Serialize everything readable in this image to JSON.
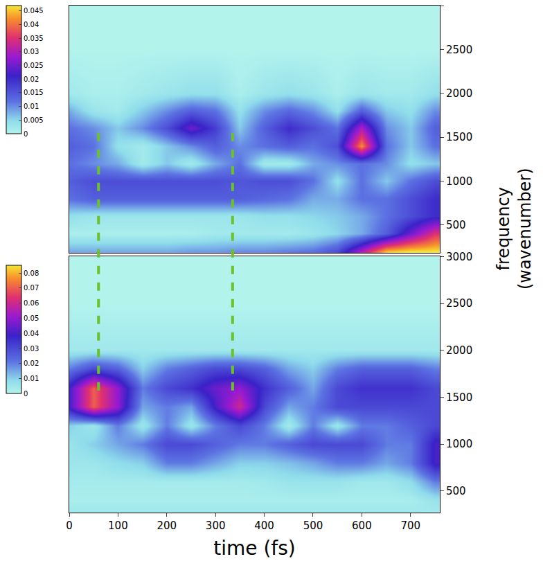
{
  "chart_data": [
    {
      "type": "heatmap",
      "x": [
        0,
        50,
        100,
        150,
        200,
        250,
        300,
        350,
        400,
        450,
        500,
        550,
        600,
        650,
        700,
        750
      ],
      "y": [
        200,
        400,
        600,
        800,
        1000,
        1200,
        1400,
        1600,
        1800,
        2000,
        2500,
        3000
      ],
      "cells": [
        [
          0.008,
          0.008,
          0.008,
          0.008,
          0.008,
          0.009,
          0.009,
          0.01,
          0.01,
          0.011,
          0.012,
          0.016,
          0.03,
          0.045,
          0.047,
          0.047
        ],
        [
          0.001,
          0.001,
          0.001,
          0.001,
          0.001,
          0.001,
          0.002,
          0.002,
          0.002,
          0.002,
          0.003,
          0.005,
          0.008,
          0.014,
          0.025,
          0.035
        ],
        [
          0.004,
          0.003,
          0.003,
          0.003,
          0.003,
          0.003,
          0.003,
          0.003,
          0.004,
          0.004,
          0.005,
          0.006,
          0.008,
          0.012,
          0.016,
          0.02
        ],
        [
          0.012,
          0.014,
          0.014,
          0.014,
          0.014,
          0.014,
          0.014,
          0.014,
          0.013,
          0.012,
          0.008,
          0.008,
          0.012,
          0.012,
          0.016,
          0.02
        ],
        [
          0.014,
          0.016,
          0.016,
          0.016,
          0.016,
          0.016,
          0.016,
          0.015,
          0.016,
          0.016,
          0.012,
          0.004,
          0.012,
          0.006,
          0.012,
          0.016
        ],
        [
          0.012,
          0.01,
          0.008,
          0.002,
          0.006,
          0.002,
          0.008,
          0.012,
          0.002,
          0.002,
          0.008,
          0.01,
          0.012,
          0.01,
          0.004,
          0.006
        ],
        [
          0.014,
          0.012,
          0.004,
          0.002,
          0.006,
          0.01,
          0.014,
          0.01,
          0.012,
          0.014,
          0.012,
          0.016,
          0.042,
          0.012,
          0.006,
          0.012
        ],
        [
          0.012,
          0.01,
          0.006,
          0.01,
          0.016,
          0.025,
          0.018,
          0.006,
          0.014,
          0.02,
          0.016,
          0.012,
          0.03,
          0.01,
          0.006,
          0.014
        ],
        [
          0.008,
          0.003,
          0.002,
          0.006,
          0.01,
          0.014,
          0.012,
          0.004,
          0.01,
          0.013,
          0.01,
          0.004,
          0.014,
          0.006,
          0.004,
          0.01
        ],
        [
          0.002,
          0.001,
          0.001,
          0.002,
          0.003,
          0.004,
          0.004,
          0.001,
          0.003,
          0.004,
          0.003,
          0.001,
          0.003,
          0.002,
          0.002,
          0.004
        ],
        [
          0,
          0,
          0,
          0,
          0,
          0,
          0,
          0,
          0,
          0,
          0,
          0,
          0,
          0,
          0,
          0
        ],
        [
          0,
          0,
          0,
          0,
          0,
          0,
          0,
          0,
          0,
          0,
          0,
          0,
          0,
          0,
          0,
          0
        ]
      ],
      "zlim": [
        0,
        0.047
      ],
      "colorbar_ticks": [
        0,
        0.005,
        0.01,
        0.015,
        0.02,
        0.025,
        0.03,
        0.035,
        0.04,
        0.045
      ],
      "xlim": [
        0,
        760
      ],
      "xticks": [
        0,
        100,
        200,
        300,
        400,
        500,
        600,
        700
      ],
      "ylim": [
        180,
        3000
      ],
      "yticks": [
        500,
        1000,
        1500,
        2000,
        2500,
        3000
      ],
      "tick_labels": "y"
    },
    {
      "type": "heatmap",
      "x": [
        0,
        50,
        100,
        150,
        200,
        250,
        300,
        350,
        400,
        450,
        500,
        550,
        600,
        650,
        700,
        750
      ],
      "y": [
        300,
        400,
        600,
        800,
        1000,
        1200,
        1400,
        1600,
        1800,
        2000,
        2500,
        3000
      ],
      "cells": [
        [
          0.004,
          0.004,
          0.004,
          0.004,
          0.004,
          0.004,
          0.004,
          0.004,
          0.004,
          0.004,
          0.004,
          0.004,
          0.004,
          0.004,
          0.004,
          0.004
        ],
        [
          0.002,
          0.002,
          0.002,
          0.002,
          0.002,
          0.002,
          0.002,
          0.002,
          0.002,
          0.002,
          0.002,
          0.002,
          0.002,
          0.002,
          0.002,
          0.006
        ],
        [
          0.003,
          0.003,
          0.003,
          0.003,
          0.003,
          0.003,
          0.003,
          0.003,
          0.004,
          0.006,
          0.006,
          0.006,
          0.004,
          0.004,
          0.008,
          0.02
        ],
        [
          0.005,
          0.005,
          0.008,
          0.01,
          0.02,
          0.02,
          0.015,
          0.01,
          0.01,
          0.012,
          0.015,
          0.02,
          0.02,
          0.015,
          0.02,
          0.04
        ],
        [
          0.006,
          0.01,
          0.015,
          0.02,
          0.03,
          0.03,
          0.025,
          0.02,
          0.02,
          0.025,
          0.03,
          0.03,
          0.03,
          0.02,
          0.02,
          0.04
        ],
        [
          0.01,
          0.005,
          0.02,
          0.005,
          0.02,
          0.005,
          0.02,
          0.03,
          0.02,
          0.003,
          0.02,
          0.005,
          0.02,
          0.02,
          0.025,
          0.03
        ],
        [
          0.04,
          0.07,
          0.05,
          0.015,
          0.02,
          0.015,
          0.04,
          0.06,
          0.03,
          0.015,
          0.02,
          0.03,
          0.03,
          0.03,
          0.03,
          0.03
        ],
        [
          0.04,
          0.07,
          0.05,
          0.02,
          0.03,
          0.035,
          0.045,
          0.05,
          0.035,
          0.025,
          0.015,
          0.03,
          0.035,
          0.035,
          0.035,
          0.03
        ],
        [
          0.02,
          0.03,
          0.025,
          0.01,
          0.02,
          0.025,
          0.03,
          0.03,
          0.025,
          0.015,
          0.01,
          0.02,
          0.025,
          0.025,
          0.025,
          0.02
        ],
        [
          0.004,
          0.004,
          0.004,
          0.004,
          0.004,
          0.004,
          0.004,
          0.004,
          0.004,
          0.004,
          0.004,
          0.004,
          0.004,
          0.004,
          0.004,
          0.004
        ],
        [
          0,
          0,
          0,
          0,
          0,
          0,
          0,
          0,
          0,
          0,
          0,
          0,
          0,
          0,
          0,
          0
        ],
        [
          0,
          0,
          0,
          0,
          0,
          0,
          0,
          0,
          0,
          0,
          0,
          0,
          0,
          0,
          0,
          0
        ]
      ],
      "zlim": [
        0,
        0.085
      ],
      "colorbar_ticks": [
        0,
        0.01,
        0.02,
        0.03,
        0.04,
        0.05,
        0.06,
        0.07,
        0.08
      ],
      "xlim": [
        0,
        760
      ],
      "xticks": [
        0,
        100,
        200,
        300,
        400,
        500,
        600,
        700
      ],
      "ylim": [
        270,
        3000
      ],
      "yticks": [
        500,
        1000,
        1500,
        2000,
        2500,
        3000
      ],
      "x_label": "time (fs)",
      "y_label": "frequency (wavenumber)"
    }
  ],
  "guide_lines": [
    {
      "x": 60,
      "top_y": 1550,
      "bottom_y": 1550
    },
    {
      "x": 335,
      "top_y": 1550,
      "bottom_y": 1550
    }
  ]
}
